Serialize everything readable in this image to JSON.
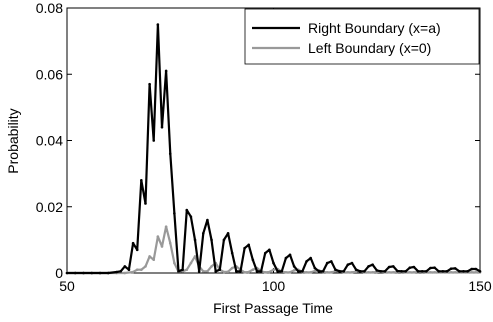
{
  "chart_data": {
    "type": "line",
    "title": "",
    "xlabel": "First Passage Time",
    "ylabel": "Probability",
    "xlim": [
      50,
      150
    ],
    "ylim": [
      0,
      0.08
    ],
    "xticks": [
      50,
      100,
      150
    ],
    "yticks": [
      0,
      0.02,
      0.04,
      0.06,
      0.08
    ],
    "ytick_labels": [
      "0",
      "0.02",
      "0.04",
      "0.06",
      "0.08"
    ],
    "grid": false,
    "legend_position": "top-right",
    "series": [
      {
        "name": "Right Boundary (x=a)",
        "color": "#000000",
        "x": [
          50,
          52,
          54,
          56,
          58,
          60,
          62,
          63,
          64,
          65,
          66,
          67,
          68,
          69,
          70,
          71,
          72,
          73,
          74,
          75,
          76,
          77,
          78,
          79,
          80,
          81,
          82,
          83,
          84,
          85,
          86,
          87,
          88,
          89,
          90,
          91,
          92,
          93,
          94,
          95,
          96,
          97,
          98,
          99,
          100,
          101,
          102,
          103,
          104,
          105,
          106,
          107,
          108,
          109,
          110,
          111,
          112,
          113,
          114,
          115,
          116,
          117,
          118,
          119,
          120,
          121,
          122,
          123,
          124,
          125,
          126,
          127,
          128,
          129,
          130,
          131,
          132,
          133,
          134,
          135,
          136,
          137,
          138,
          139,
          140,
          141,
          142,
          143,
          144,
          145,
          146,
          147,
          148,
          149,
          150
        ],
        "y": [
          0,
          0,
          0,
          0,
          0,
          0,
          0.0003,
          0.0005,
          0.002,
          0.001,
          0.009,
          0.007,
          0.028,
          0.021,
          0.057,
          0.04,
          0.075,
          0.044,
          0.061,
          0.036,
          0.018,
          0.0005,
          0.001,
          0.019,
          0.017,
          0.01,
          0.0005,
          0.012,
          0.016,
          0.01,
          0.0005,
          0.001,
          0.01,
          0.012,
          0.006,
          0.0005,
          0.0005,
          0.0075,
          0.0085,
          0.004,
          0.0005,
          0.0005,
          0.006,
          0.007,
          0.003,
          0.0005,
          0.0005,
          0.0045,
          0.0055,
          0.002,
          0.0005,
          0.0005,
          0.0035,
          0.0045,
          0.0015,
          0.0005,
          0.0005,
          0.003,
          0.0035,
          0.001,
          0.0005,
          0.0005,
          0.0025,
          0.003,
          0.001,
          0.0005,
          0.0005,
          0.002,
          0.0025,
          0.0008,
          0.0005,
          0.0005,
          0.0018,
          0.002,
          0.0006,
          0.0005,
          0.0005,
          0.0016,
          0.0018,
          0.0005,
          0.0005,
          0.0005,
          0.0015,
          0.0016,
          0.0005,
          0.0005,
          0.0005,
          0.0013,
          0.0014,
          0.0005,
          0.0005,
          0.0005,
          0.0012,
          0.0012,
          0.0005
        ]
      },
      {
        "name": "Left Boundary (x=0)",
        "color": "#999999",
        "x": [
          50,
          52,
          54,
          56,
          58,
          60,
          62,
          64,
          66,
          67,
          68,
          69,
          70,
          71,
          72,
          73,
          74,
          75,
          76,
          77,
          78,
          79,
          80,
          81,
          82,
          83,
          84,
          85,
          86,
          87,
          88,
          89,
          90,
          91,
          92,
          93,
          94,
          95,
          96,
          97,
          98,
          99,
          100,
          101,
          102,
          103,
          104,
          105,
          106,
          107,
          108,
          109,
          110,
          111,
          112,
          113,
          114,
          115,
          116,
          117,
          118,
          119,
          120,
          121,
          122,
          123,
          124,
          125,
          126,
          127,
          128,
          129,
          130,
          131,
          132,
          133,
          134,
          135,
          136,
          137,
          138,
          139,
          140,
          141,
          142,
          143,
          144,
          145,
          146,
          147,
          148,
          149,
          150
        ],
        "y": [
          0,
          0,
          0,
          0,
          0,
          0,
          0,
          0,
          0.0003,
          0.001,
          0.001,
          0.002,
          0.005,
          0.004,
          0.011,
          0.008,
          0.014,
          0.009,
          0.003,
          0.0004,
          0.0005,
          0.001,
          0.003,
          0.005,
          0.002,
          0.0005,
          0.0005,
          0.002,
          0.003,
          0.001,
          0.0003,
          0.0004,
          0.0015,
          0.002,
          0.001,
          0.0002,
          0.0003,
          0.001,
          0.0015,
          0.0005,
          0.0002,
          0.0003,
          0.001,
          0.0012,
          0.0004,
          0.0002,
          0.0002,
          0.0008,
          0.001,
          0.0003,
          0.0002,
          0.0002,
          0.0006,
          0.0008,
          0.0003,
          0.0002,
          0.0002,
          0.0005,
          0.0006,
          0.0002,
          0.0002,
          0.0002,
          0.0004,
          0.0005,
          0.0002,
          0.0002,
          0.0002,
          0.0003,
          0.0004,
          0.0002,
          0.0002,
          0.0002,
          0.0003,
          0.0003,
          0.0002,
          0.0002,
          0.0002,
          0.0003,
          0.0003,
          0.0002,
          0.0002,
          0.0002,
          0.0002,
          0.0002,
          0.0002,
          0.0002,
          0.0002,
          0.0002,
          0.0002,
          0.0002,
          0.0002,
          0.0002,
          0.0002
        ]
      }
    ]
  }
}
